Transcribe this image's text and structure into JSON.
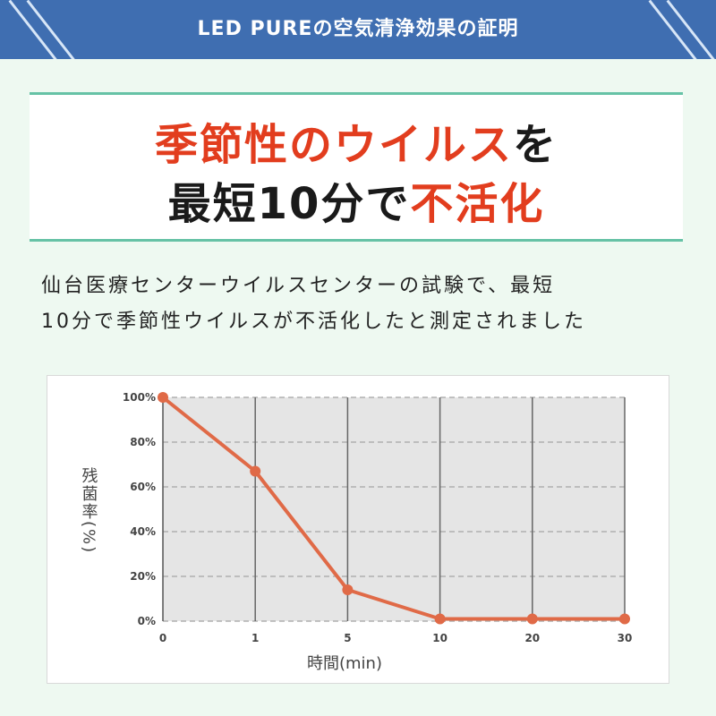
{
  "header": {
    "title": "LED PUREの空気清浄効果の証明"
  },
  "headline": {
    "line1": [
      {
        "text": "季節性のウイルス",
        "color": "#e23d1e"
      },
      {
        "text": "を",
        "color": "#1a1a1a"
      }
    ],
    "line2": [
      {
        "text": "最短10分で",
        "color": "#1a1a1a"
      },
      {
        "text": "不活化",
        "color": "#e23d1e"
      }
    ]
  },
  "description": {
    "line1": "仙台医療センターウイルスセンターの試験で、最短",
    "line2": "10分で季節性ウイルスが不活化したと測定されました"
  },
  "chart_data": {
    "type": "line",
    "categories": [
      "0",
      "1",
      "5",
      "10",
      "20",
      "30"
    ],
    "series": [
      {
        "values": [
          100,
          67,
          14,
          1,
          1,
          1
        ],
        "color": "#e06a47"
      }
    ],
    "yticks": [
      "0%",
      "20%",
      "40%",
      "60%",
      "80%",
      "100%"
    ],
    "ylim": [
      0,
      100
    ],
    "ylabel": "残菌率(%)",
    "xlabel": "時間(min)",
    "grid": true
  }
}
